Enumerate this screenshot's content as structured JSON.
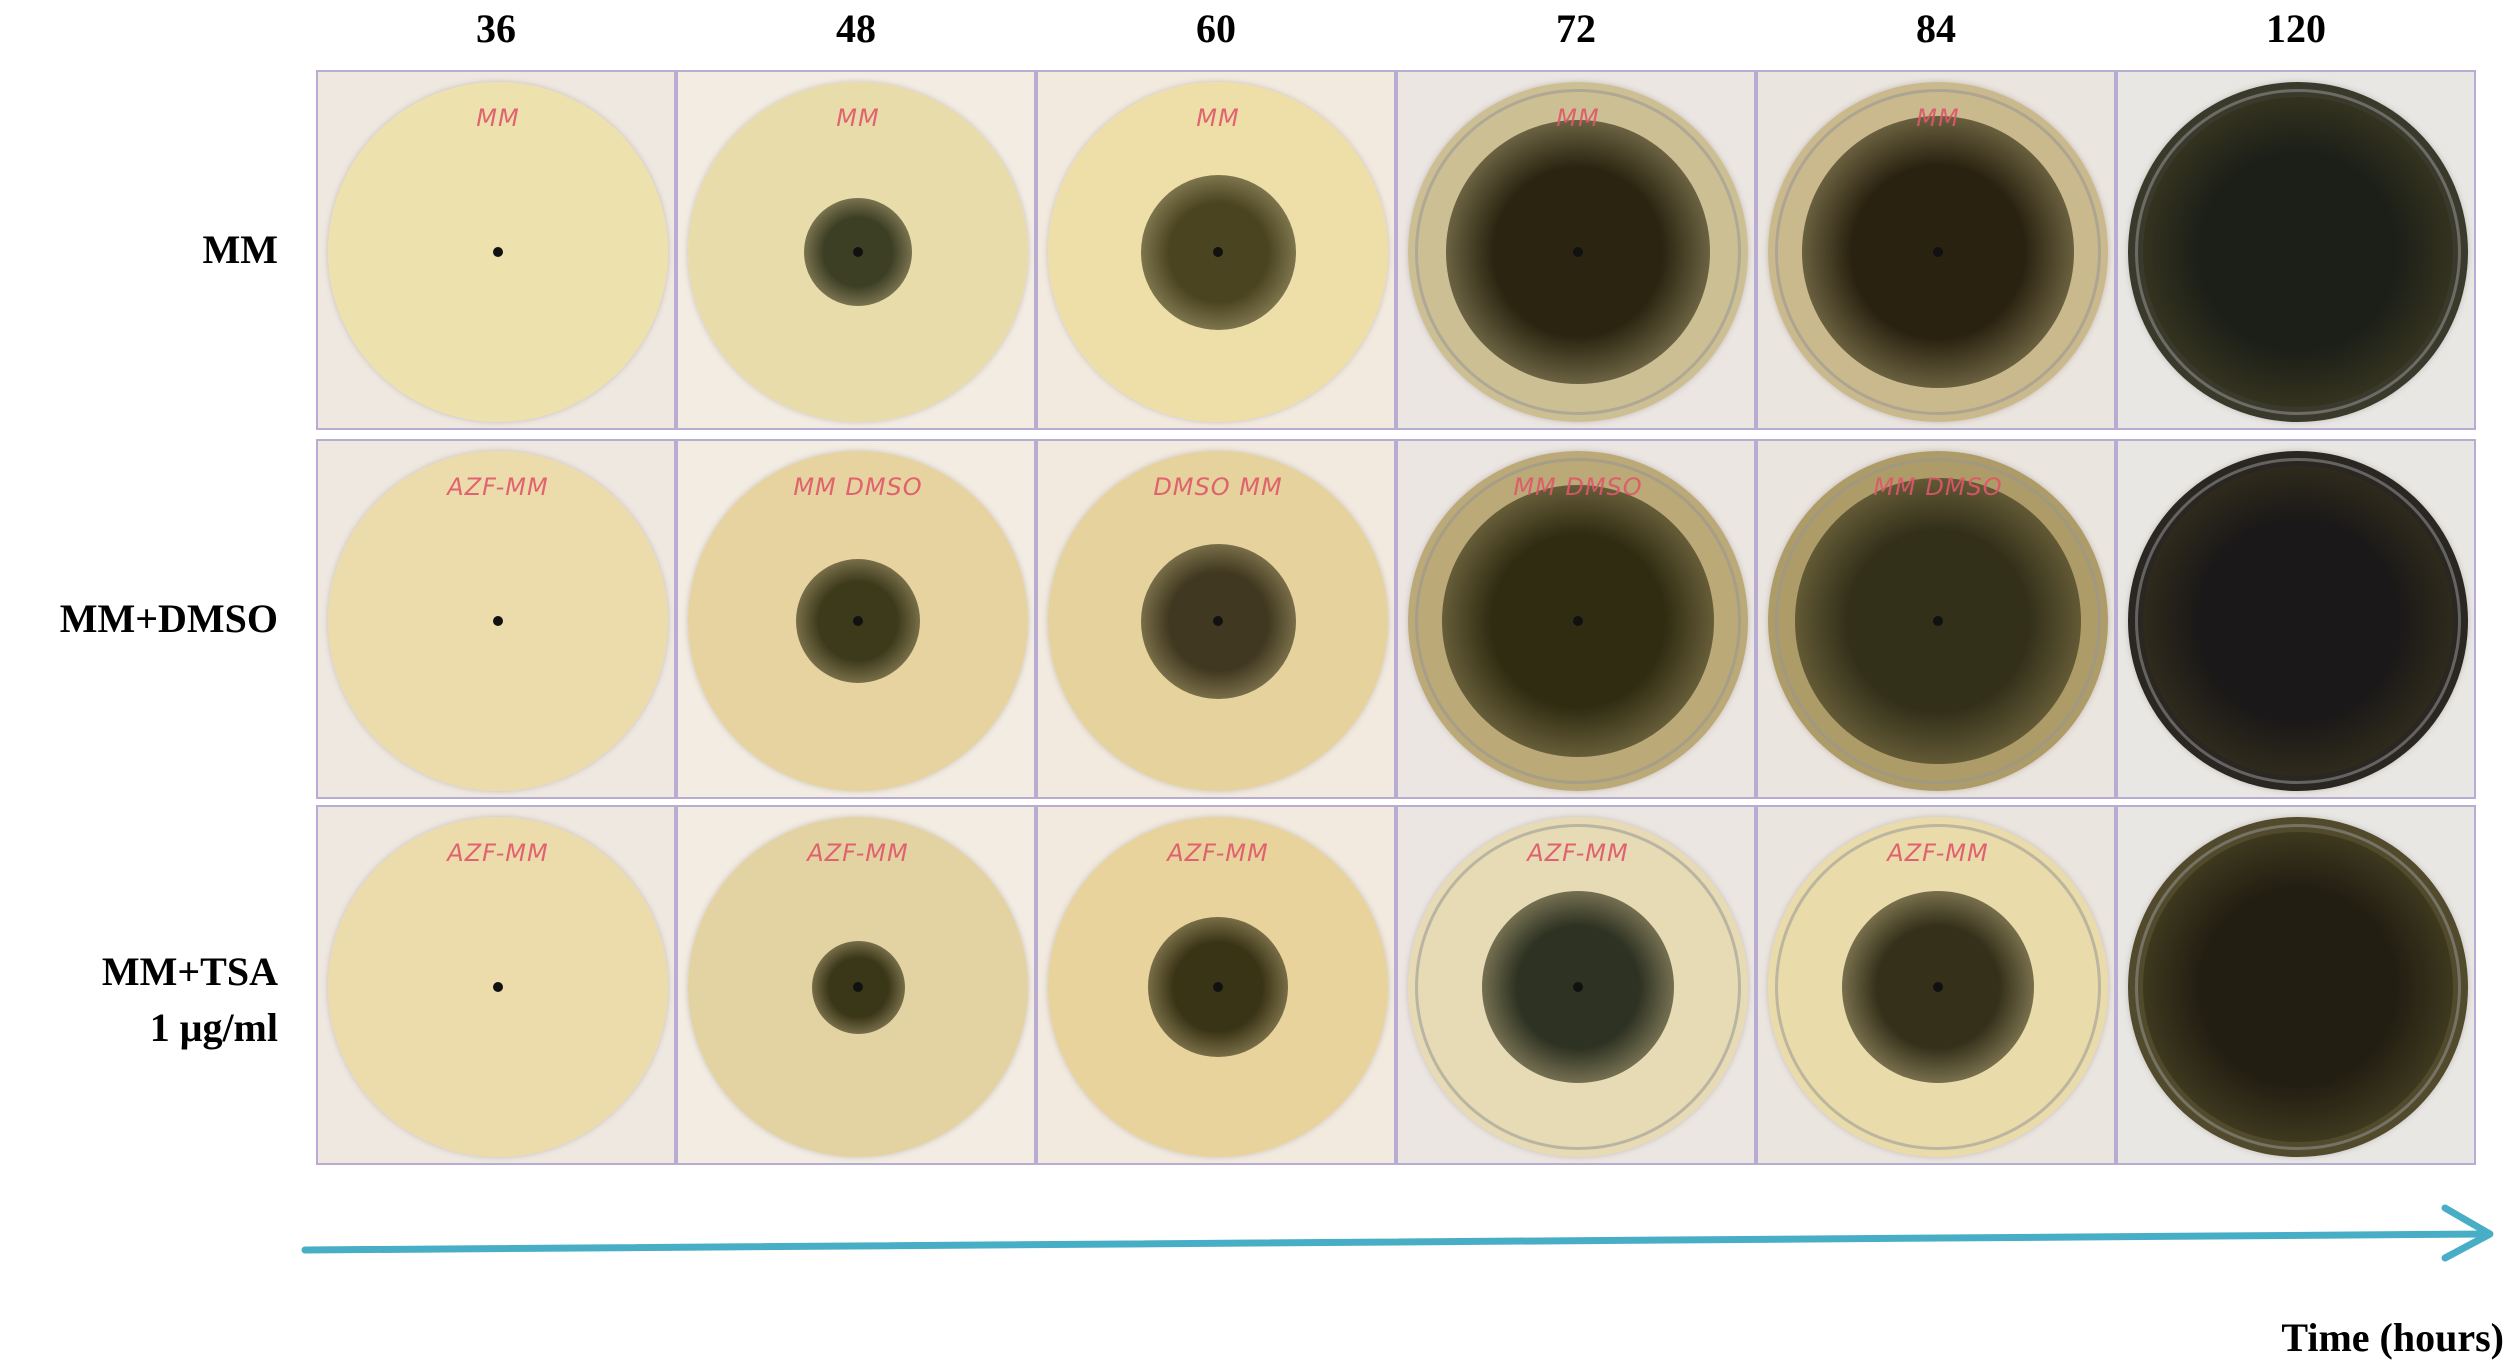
{
  "columns": [
    "36",
    "48",
    "60",
    "72",
    "84",
    "120"
  ],
  "rows": [
    {
      "label_lines": [
        "MM"
      ]
    },
    {
      "label_lines": [
        "MM+DMSO"
      ]
    },
    {
      "label_lines": [
        "MM+TSA",
        "1 μg/ml"
      ]
    }
  ],
  "dishes": [
    [
      {
        "label": "MM",
        "growth": 0.02,
        "media": "#ede1ad",
        "colony": "#2a2a12",
        "rim": false
      },
      {
        "label": "MM",
        "growth": 0.35,
        "media": "#e9dcab",
        "colony": "#3d3f25",
        "rim": false
      },
      {
        "label": "MM",
        "growth": 0.5,
        "media": "#eedfa9",
        "colony": "#4a4420",
        "rim": false
      },
      {
        "label": "MM",
        "growth": 0.85,
        "media": "#cdbf94",
        "colony": "#2a2410",
        "rim": true
      },
      {
        "label": "MM",
        "growth": 0.88,
        "media": "#c9b98c",
        "colony": "#2a2210",
        "rim": true
      },
      {
        "label": "",
        "growth": 1.0,
        "media": "#3a3a2c",
        "colony": "#1c1f18",
        "rim": true
      }
    ],
    [
      {
        "label": "AZF-MM",
        "growth": 0.02,
        "media": "#ecdcab",
        "colony": "#2a2a12",
        "rim": false
      },
      {
        "label": "MM DMSO",
        "growth": 0.4,
        "media": "#e6d39f",
        "colony": "#3d3a1c",
        "rim": false
      },
      {
        "label": "DMSO MM",
        "growth": 0.5,
        "media": "#e6d29c",
        "colony": "#403820",
        "rim": false
      },
      {
        "label": "MM DMSO",
        "growth": 0.88,
        "media": "#bca978",
        "colony": "#302c12",
        "rim": true
      },
      {
        "label": "MM DMSO",
        "growth": 0.92,
        "media": "#ae9c68",
        "colony": "#33301a",
        "rim": true
      },
      {
        "label": "",
        "growth": 1.0,
        "media": "#2a2622",
        "colony": "#1a1818",
        "rim": true
      }
    ],
    [
      {
        "label": "AZF-MM",
        "growth": 0.02,
        "media": "#ecdcab",
        "colony": "#2a2a12",
        "rim": false
      },
      {
        "label": "AZF-MM",
        "growth": 0.3,
        "media": "#e4d3a2",
        "colony": "#3a3618",
        "rim": false
      },
      {
        "label": "AZF-MM",
        "growth": 0.45,
        "media": "#e8d39c",
        "colony": "#3a3416",
        "rim": false
      },
      {
        "label": "AZF-MM",
        "growth": 0.62,
        "media": "#e6dbb4",
        "colony": "#2e3222",
        "rim": true
      },
      {
        "label": "AZF-MM",
        "growth": 0.62,
        "media": "#eadbaa",
        "colony": "#35301a",
        "rim": true
      },
      {
        "label": "",
        "growth": 1.0,
        "media": "#514a2c",
        "colony": "#221e12",
        "rim": true
      }
    ]
  ],
  "axis": {
    "label": "Time (hours)",
    "color": "#48aec6"
  }
}
